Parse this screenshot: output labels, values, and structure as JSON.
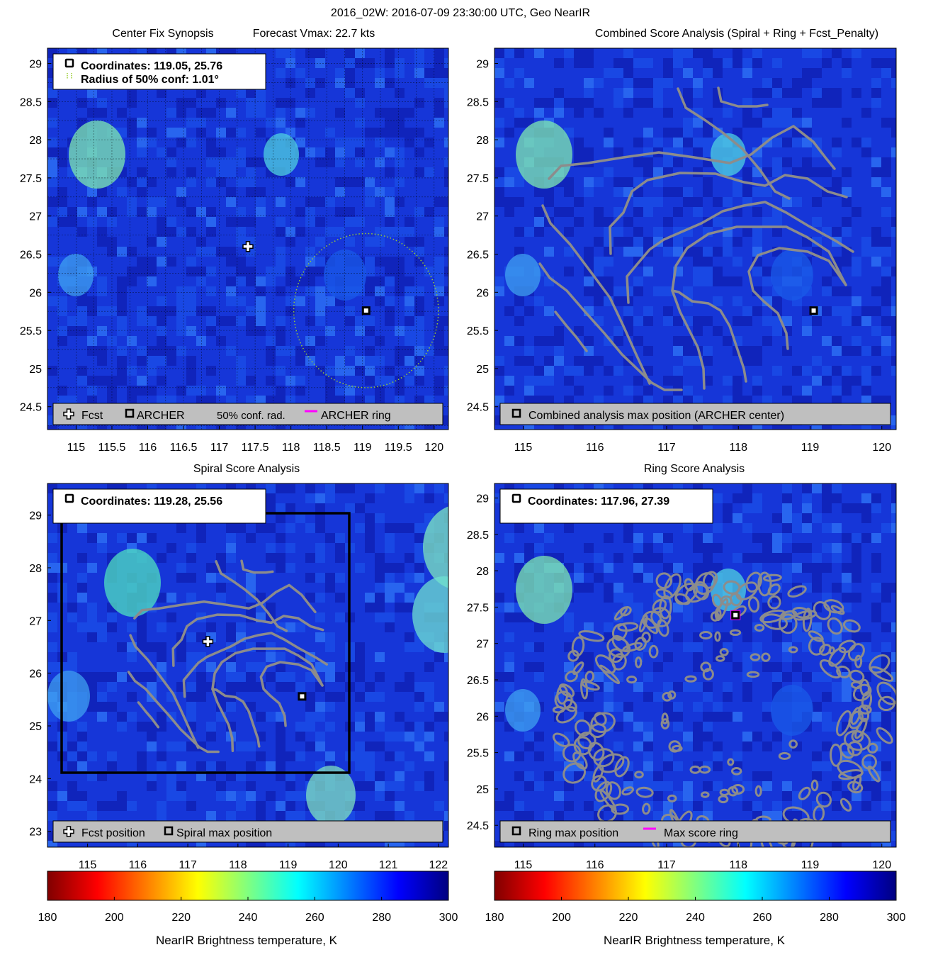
{
  "figure": {
    "title": "2016_02W: 2016-07-09 23:30:00 UTC, Geo NearIR"
  },
  "colorbar": {
    "label": "NearIR Brightness temperature, K",
    "ticks": [
      180,
      200,
      220,
      240,
      260,
      280,
      300
    ],
    "range": [
      180,
      300
    ],
    "colormap": [
      "#800000",
      "#ff0000",
      "#ff8000",
      "#ffff00",
      "#80ff80",
      "#00ffff",
      "#0080ff",
      "#0000ff",
      "#000080"
    ]
  },
  "colors": {
    "background_fill": "#1636d8",
    "contour": "#8c8c8c",
    "conf_circle": "#9acd32",
    "ring": "#ff00ff",
    "legend_bg": "#bfbfbf"
  },
  "chart_data": [
    {
      "type": "heatmap",
      "title": "Center Fix Synopsis",
      "title_extra": "Forecast Vmax: 22.7 kts",
      "xlim": [
        114.6,
        120.2
      ],
      "ylim": [
        24.2,
        29.2
      ],
      "xticks": [
        "115",
        "115.5",
        "116",
        "116.5",
        "117",
        "117.5",
        "118",
        "118.5",
        "119",
        "119.5",
        "120"
      ],
      "yticks": [
        "24.5",
        "25",
        "25.5",
        "26",
        "26.5",
        "27",
        "27.5",
        "28",
        "28.5",
        "29"
      ],
      "grid": true,
      "fcst": {
        "lon": 117.4,
        "lat": 26.6
      },
      "archer": {
        "lon": 119.05,
        "lat": 25.76
      },
      "conf_radius_deg": 1.01,
      "info_box": [
        "Coordinates: 119.05, 25.76",
        "Radius of 50% conf: 1.01°"
      ],
      "legend": [
        "Fcst",
        "ARCHER",
        "50% conf. rad.",
        "ARCHER ring"
      ]
    },
    {
      "type": "heatmap",
      "title": "Combined Score Analysis (Spiral + Ring + Fcst_Penalty)",
      "xlim": [
        114.6,
        120.2
      ],
      "ylim": [
        24.2,
        29.2
      ],
      "xticks": [
        "115",
        "116",
        "117",
        "118",
        "119",
        "120"
      ],
      "yticks": [
        "24.5",
        "25",
        "25.5",
        "26",
        "26.5",
        "27",
        "27.5",
        "28",
        "28.5",
        "29"
      ],
      "grid": false,
      "archer": {
        "lon": 119.05,
        "lat": 25.76
      },
      "legend": [
        "Combined analysis max position (ARCHER center)"
      ]
    },
    {
      "type": "heatmap",
      "title": "Spiral Score Analysis",
      "xlim": [
        114.2,
        122.2
      ],
      "ylim": [
        22.7,
        29.6
      ],
      "xticks": [
        "115",
        "116",
        "117",
        "118",
        "119",
        "120",
        "121",
        "122"
      ],
      "yticks": [
        "23",
        "24",
        "25",
        "26",
        "27",
        "28",
        "29"
      ],
      "grid": false,
      "fcst": {
        "lon": 117.4,
        "lat": 26.6
      },
      "spiral_max": {
        "lon": 119.28,
        "lat": 25.56
      },
      "info_box": [
        "Coordinates: 119.28, 25.56"
      ],
      "legend": [
        "Fcst position",
        "Spiral max position"
      ]
    },
    {
      "type": "heatmap",
      "title": "Ring Score Analysis",
      "xlim": [
        114.6,
        120.2
      ],
      "ylim": [
        24.2,
        29.2
      ],
      "xticks": [
        "115",
        "116",
        "117",
        "118",
        "119",
        "120"
      ],
      "yticks": [
        "24.5",
        "25",
        "25.5",
        "26",
        "26.5",
        "27",
        "27.5",
        "28",
        "28.5",
        "29"
      ],
      "grid": false,
      "ring_max": {
        "lon": 117.96,
        "lat": 27.39
      },
      "info_box": [
        "Coordinates: 117.96, 27.39"
      ],
      "legend": [
        "Ring max position",
        "Max score ring"
      ]
    }
  ]
}
